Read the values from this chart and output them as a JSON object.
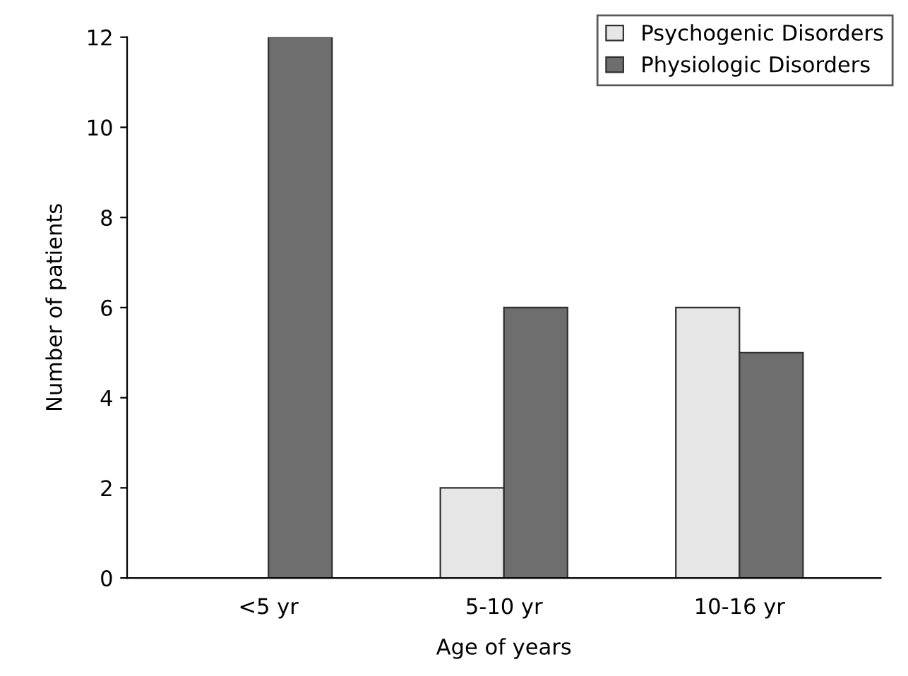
{
  "chart_data": {
    "type": "bar",
    "xlabel": "Age of years",
    "ylabel": "Number of patients",
    "categories": [
      "<5 yr",
      "5-10 yr",
      "10-16 yr"
    ],
    "series": [
      {
        "name": "Psychogenic Disorders",
        "color": "#e6e6e6",
        "values": [
          0,
          2,
          6
        ]
      },
      {
        "name": "Physiologic Disorders",
        "color": "#6e6e6e",
        "values": [
          12,
          6,
          5
        ]
      }
    ],
    "ylim": [
      0,
      12
    ],
    "yticks": [
      0,
      2,
      4,
      6,
      8,
      10,
      12
    ],
    "grid": false,
    "legend": "top right"
  }
}
